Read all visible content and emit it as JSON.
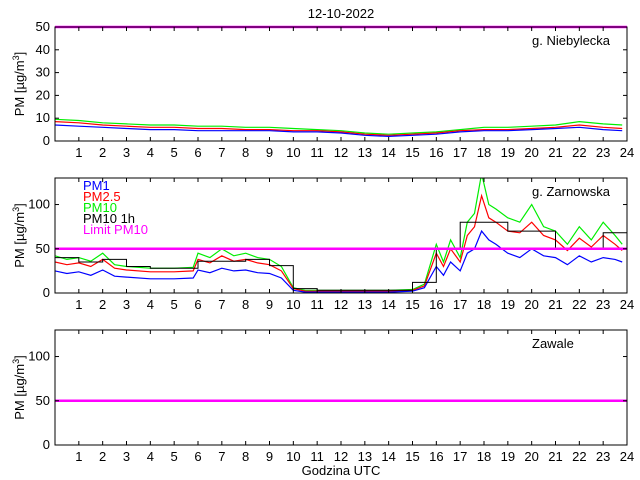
{
  "page_title": "12-10-2022",
  "xlabel": "Godzina UTC",
  "colors": {
    "pm1": "#0000ff",
    "pm25": "#ff0000",
    "pm10": "#00ee00",
    "pm10_1h": "#000000",
    "limit": "#ff00ff"
  },
  "chart_data": [
    {
      "type": "line",
      "station": "g. Niebylecka",
      "ylabel_main": "PM [µg/m",
      "ylabel_sup": "3",
      "ylabel_end": "]",
      "xlim": [
        0,
        24
      ],
      "ylim": [
        0,
        50
      ],
      "yticks": [
        0,
        10,
        20,
        30,
        40,
        50
      ],
      "xticks": [
        1,
        2,
        3,
        4,
        5,
        6,
        7,
        8,
        9,
        10,
        11,
        12,
        13,
        14,
        15,
        16,
        17,
        18,
        19,
        20,
        21,
        22,
        23,
        24
      ],
      "limit_value": 50,
      "series": [
        {
          "key": "pm10",
          "x": [
            0,
            1,
            2,
            3,
            4,
            5,
            6,
            7,
            8,
            9,
            10,
            11,
            12,
            13,
            14,
            15,
            16,
            17,
            18,
            19,
            20,
            21,
            22,
            23,
            23.8
          ],
          "values": [
            9.5,
            9,
            8,
            7.5,
            7,
            7,
            6.5,
            6.5,
            6,
            6,
            5.5,
            5,
            4.5,
            3.5,
            3,
            3.5,
            4,
            5,
            6,
            6,
            6.5,
            7,
            8.5,
            7.5,
            7
          ]
        },
        {
          "key": "pm25",
          "x": [
            0,
            1,
            2,
            3,
            4,
            5,
            6,
            7,
            8,
            9,
            10,
            11,
            12,
            13,
            14,
            15,
            16,
            17,
            18,
            19,
            20,
            21,
            22,
            23,
            23.8
          ],
          "values": [
            8.5,
            8,
            7,
            6.5,
            6,
            6,
            5.5,
            5.5,
            5,
            5,
            4.5,
            4.5,
            4,
            3,
            2.5,
            3,
            3.5,
            4.5,
            5,
            5,
            5.5,
            6,
            7,
            6,
            5.5
          ]
        },
        {
          "key": "pm1",
          "x": [
            0,
            1,
            2,
            3,
            4,
            5,
            6,
            7,
            8,
            9,
            10,
            11,
            12,
            13,
            14,
            15,
            16,
            17,
            18,
            19,
            20,
            21,
            22,
            23,
            23.8
          ],
          "values": [
            7,
            6.5,
            6,
            5.5,
            5,
            5,
            4.5,
            4.5,
            4.5,
            4.5,
            4,
            4,
            3.5,
            2.5,
            2,
            2.5,
            3,
            4,
            4.5,
            4.5,
            5,
            5.5,
            6,
            5,
            4.5
          ]
        }
      ]
    },
    {
      "type": "line",
      "station": "g. Zarnowska",
      "ylabel_main": "PM [µg/m",
      "ylabel_sup": "3",
      "ylabel_end": "]",
      "xlim": [
        0,
        24
      ],
      "ylim": [
        0,
        130
      ],
      "yticks": [
        0,
        50,
        100
      ],
      "xticks": [
        1,
        2,
        3,
        4,
        5,
        6,
        7,
        8,
        9,
        10,
        11,
        12,
        13,
        14,
        15,
        16,
        17,
        18,
        19,
        20,
        21,
        22,
        23,
        24
      ],
      "limit_value": 50,
      "legend": [
        {
          "key": "pm1",
          "label": "PM1"
        },
        {
          "key": "pm25",
          "label": "PM2.5"
        },
        {
          "key": "pm10",
          "label": "PM10"
        },
        {
          "key": "pm10_1h",
          "label": "PM10 1h"
        },
        {
          "key": "limit",
          "label": "Limit PM10"
        }
      ],
      "series": [
        {
          "key": "pm10",
          "x": [
            0,
            0.5,
            1,
            1.5,
            2,
            2.5,
            3,
            4,
            5,
            5.8,
            6,
            6.5,
            7,
            7.5,
            8,
            8.5,
            9,
            9.5,
            10,
            10.5,
            11,
            12,
            13,
            14,
            15,
            15.5,
            16,
            16.3,
            16.6,
            17,
            17.3,
            17.6,
            17.9,
            18.2,
            18.5,
            19,
            19.5,
            20,
            20.5,
            21,
            21.5,
            22,
            22.5,
            23,
            23.5,
            23.8
          ],
          "values": [
            42,
            38,
            40,
            36,
            45,
            32,
            30,
            28,
            28,
            29,
            45,
            40,
            50,
            42,
            45,
            40,
            38,
            30,
            6,
            3,
            3,
            3,
            3,
            3,
            4,
            10,
            55,
            35,
            60,
            40,
            80,
            90,
            135,
            100,
            95,
            85,
            80,
            100,
            75,
            70,
            55,
            75,
            60,
            80,
            65,
            55
          ]
        },
        {
          "key": "pm25",
          "x": [
            0,
            0.5,
            1,
            1.5,
            2,
            2.5,
            3,
            4,
            5,
            5.8,
            6,
            6.5,
            7,
            7.5,
            8,
            8.5,
            9,
            9.5,
            10,
            10.5,
            11,
            12,
            13,
            14,
            15,
            15.5,
            16,
            16.3,
            16.6,
            17,
            17.3,
            17.6,
            17.9,
            18.2,
            18.5,
            19,
            19.5,
            20,
            20.5,
            21,
            21.5,
            22,
            22.5,
            23,
            23.5,
            23.8
          ],
          "values": [
            35,
            32,
            34,
            30,
            38,
            28,
            26,
            24,
            24,
            25,
            38,
            34,
            42,
            36,
            38,
            34,
            32,
            25,
            5,
            2,
            2,
            2,
            2,
            2,
            3,
            8,
            45,
            30,
            50,
            35,
            65,
            75,
            110,
            85,
            80,
            70,
            68,
            80,
            65,
            60,
            48,
            62,
            52,
            65,
            55,
            48
          ]
        },
        {
          "key": "pm1",
          "x": [
            0,
            0.5,
            1,
            1.5,
            2,
            2.5,
            3,
            4,
            5,
            5.8,
            6,
            6.5,
            7,
            7.5,
            8,
            8.5,
            9,
            9.5,
            10,
            10.5,
            11,
            12,
            13,
            14,
            15,
            15.5,
            16,
            16.3,
            16.6,
            17,
            17.3,
            17.6,
            17.9,
            18.2,
            18.5,
            19,
            19.5,
            20,
            20.5,
            21,
            21.5,
            22,
            22.5,
            23,
            23.5,
            23.8
          ],
          "values": [
            25,
            22,
            24,
            20,
            26,
            19,
            18,
            16,
            16,
            17,
            26,
            23,
            28,
            25,
            26,
            23,
            22,
            17,
            3,
            1,
            1,
            1,
            1,
            1,
            2,
            6,
            30,
            20,
            35,
            25,
            45,
            50,
            70,
            60,
            55,
            45,
            40,
            50,
            42,
            40,
            32,
            42,
            35,
            40,
            38,
            35
          ]
        },
        {
          "key": "pm10_1h",
          "step": true,
          "x": [
            0,
            1,
            2,
            3,
            4,
            5,
            6,
            7,
            8,
            9,
            10,
            11,
            12,
            13,
            14,
            15,
            16,
            17,
            18,
            19,
            20,
            21,
            22,
            23,
            24
          ],
          "values": [
            40,
            35,
            38,
            30,
            28,
            28,
            36,
            36,
            38,
            31,
            5,
            3,
            3,
            3,
            3,
            12,
            50,
            80,
            80,
            70,
            70,
            50,
            50,
            68,
            55
          ]
        }
      ]
    },
    {
      "type": "line",
      "station": "Zawale",
      "ylabel_main": "PM [µg/m",
      "ylabel_sup": "3",
      "ylabel_end": "]",
      "xlim": [
        0,
        24
      ],
      "ylim": [
        0,
        130
      ],
      "yticks": [
        0,
        50,
        100
      ],
      "xticks": [
        1,
        2,
        3,
        4,
        5,
        6,
        7,
        8,
        9,
        10,
        11,
        12,
        13,
        14,
        15,
        16,
        17,
        18,
        19,
        20,
        21,
        22,
        23,
        24
      ],
      "limit_value": 50,
      "series": []
    }
  ]
}
